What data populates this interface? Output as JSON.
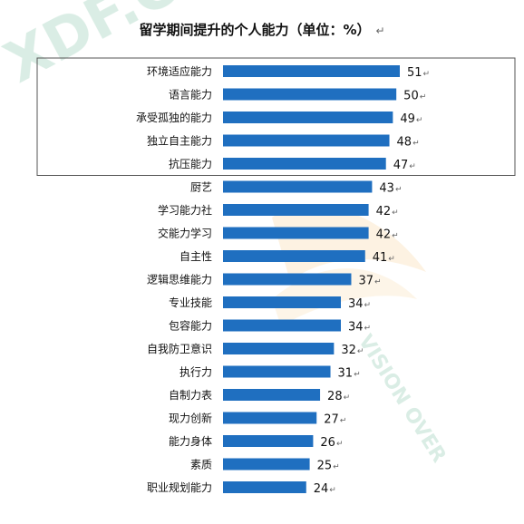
{
  "chart_data": {
    "type": "bar",
    "orientation": "horizontal",
    "title": "留学期间提升的个人能力（单位：%）",
    "title_mark": "↵",
    "value_mark": "↵",
    "bar_color": "#1F6FC0",
    "highlight_box_color": "#555555",
    "highlight_top_n": 5,
    "categories": [
      "环境适应能力",
      "语言能力",
      "承受孤独的能力",
      "独立自主能力",
      "抗压能力",
      "厨艺",
      "学习能力社",
      "交能力学习",
      "自主性",
      "逻辑思维能力",
      "专业技能",
      "包容能力",
      "自我防卫意识",
      "执行力",
      "自制力表",
      "现力创新",
      "能力身体",
      "素质",
      "职业规划能力"
    ],
    "values": [
      51,
      50,
      49,
      48,
      47,
      43,
      42,
      42,
      41,
      37,
      34,
      34,
      32,
      31,
      28,
      27,
      26,
      25,
      24
    ],
    "xlim": [
      0,
      51
    ],
    "grid": false,
    "legend": "none"
  },
  "watermark": {
    "text_top": "XDF.CN",
    "text_bottom": "VISION OVER",
    "color": "#7ac7a0"
  }
}
